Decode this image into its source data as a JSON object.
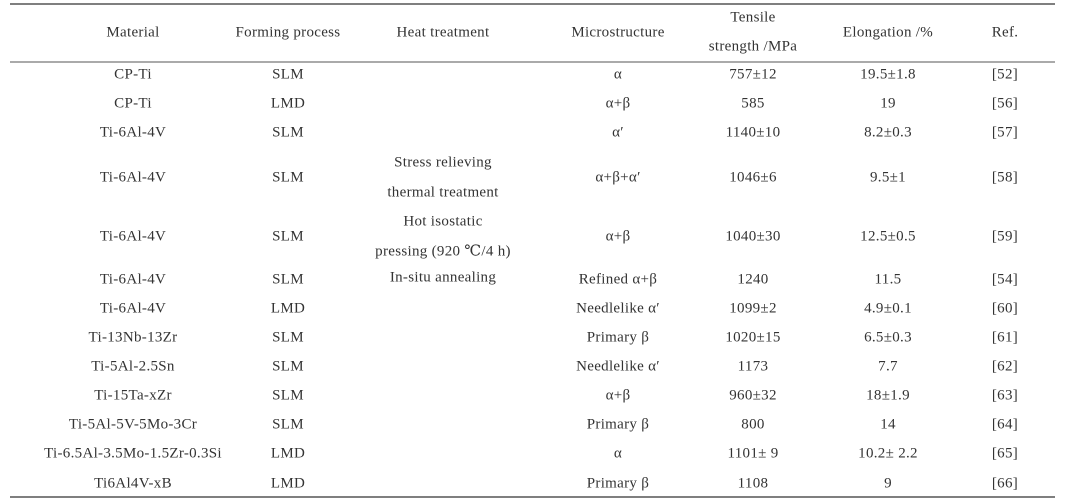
{
  "table": {
    "header": [
      "Material",
      "Forming process",
      "Heat treatment",
      "Microstructure",
      [
        "Tensile",
        "strength /MPa"
      ],
      "Elongation /%",
      "Ref."
    ],
    "rows": [
      {
        "material": "CP-Ti",
        "process": "SLM",
        "microstructure": "α",
        "tensile": "757±12",
        "elongation": "19.5±1.8",
        "ref": "[52]"
      },
      {
        "material": "CP-Ti",
        "process": "LMD",
        "microstructure": "α+β",
        "tensile": "585",
        "elongation": "19",
        "ref": "[56]"
      },
      {
        "material": "Ti-6Al-4V",
        "process": "SLM",
        "microstructure": "α′",
        "tensile": "1140±10",
        "elongation": "8.2±0.3",
        "ref": "[57]"
      },
      {
        "material": "Ti-6Al-4V",
        "process": "SLM",
        "heat_treatment": [
          "Stress relieving",
          "thermal treatment"
        ],
        "microstructure": "α+β+α′",
        "tensile": "1046±6",
        "elongation": "9.5±1",
        "ref": "[58]"
      },
      {
        "material": "Ti-6Al-4V",
        "process": "SLM",
        "heat_treatment": [
          "Hot isostatic",
          "pressing (920 ℃/4 h)"
        ],
        "microstructure": "α+β",
        "tensile": "1040±30",
        "elongation": "12.5±0.5",
        "ref": "[59]"
      },
      {
        "material": "Ti-6Al-4V",
        "process": "SLM",
        "heat_treatment": [
          "In-situ annealing"
        ],
        "microstructure": "Refined α+β",
        "tensile": "1240",
        "elongation": "11.5",
        "ref": "[54]"
      },
      {
        "material": "Ti-6Al-4V",
        "process": "LMD",
        "microstructure": "Needlelike α′",
        "tensile": "1099±2",
        "elongation": "4.9±0.1",
        "ref": "[60]"
      },
      {
        "material": "Ti-13Nb-13Zr",
        "process": "SLM",
        "microstructure": "Primary β",
        "tensile": "1020±15",
        "elongation": "6.5±0.3",
        "ref": "[61]"
      },
      {
        "material": "Ti-5Al-2.5Sn",
        "process": "SLM",
        "microstructure": "Needlelike α′",
        "tensile": "1173",
        "elongation": "7.7",
        "ref": "[62]"
      },
      {
        "material": "Ti-15Ta-xZr",
        "process": "SLM",
        "microstructure": "α+β",
        "tensile": "960±32",
        "elongation": "18±1.9",
        "ref": "[63]"
      },
      {
        "material": "Ti-5Al-5V-5Mo-3Cr",
        "process": "SLM",
        "microstructure": "Primary β",
        "tensile": "800",
        "elongation": "14",
        "ref": "[64]"
      },
      {
        "material": "Ti-6.5Al-3.5Mo-1.5Zr-0.3Si",
        "process": "LMD",
        "microstructure": "α",
        "tensile": "1101± 9",
        "elongation": "10.2± 2.2",
        "ref": "[65]"
      },
      {
        "material": "Ti6Al4V-xB",
        "process": "LMD",
        "microstructure": "Primary β",
        "tensile": "1108",
        "elongation": "9",
        "ref": "[66]"
      }
    ]
  }
}
